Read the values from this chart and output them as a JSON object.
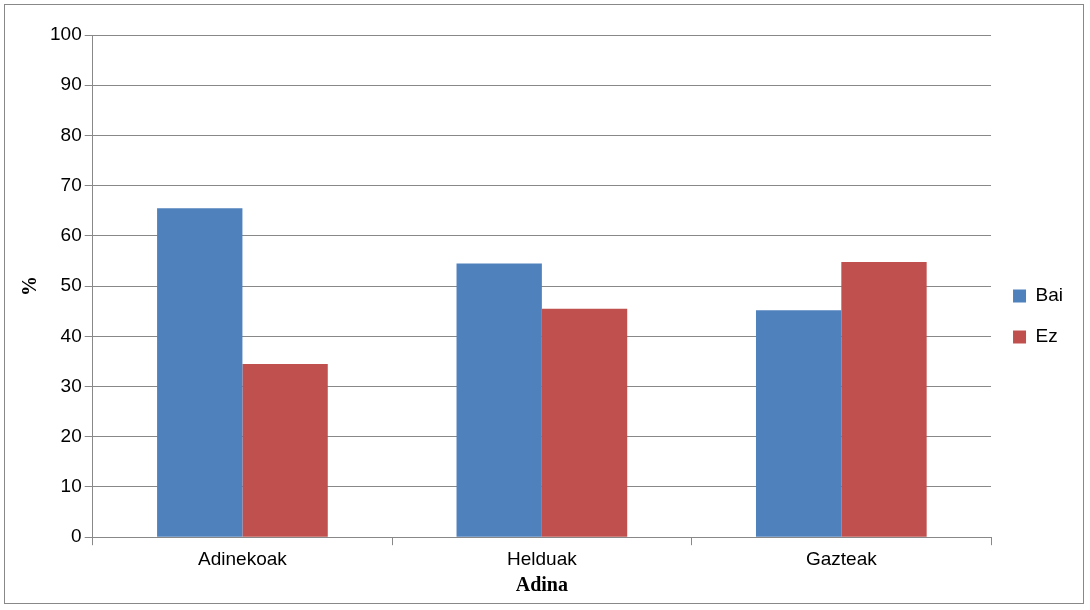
{
  "chart_data": {
    "type": "bar",
    "xlabel": "Adina",
    "ylabel": "%",
    "categories": [
      "Adinekoak",
      "Helduak",
      "Gazteak"
    ],
    "series": [
      {
        "name": "Bai",
        "color": "#4f81bd",
        "values": [
          65.5,
          54.5,
          45.2
        ]
      },
      {
        "name": "Ez",
        "color": "#c0504d",
        "values": [
          34.5,
          45.5,
          54.8
        ]
      }
    ],
    "ylim": [
      0,
      100
    ],
    "yticks": [
      0,
      10,
      20,
      30,
      40,
      50,
      60,
      70,
      80,
      90,
      100
    ],
    "grid": "y",
    "legend": "right"
  }
}
